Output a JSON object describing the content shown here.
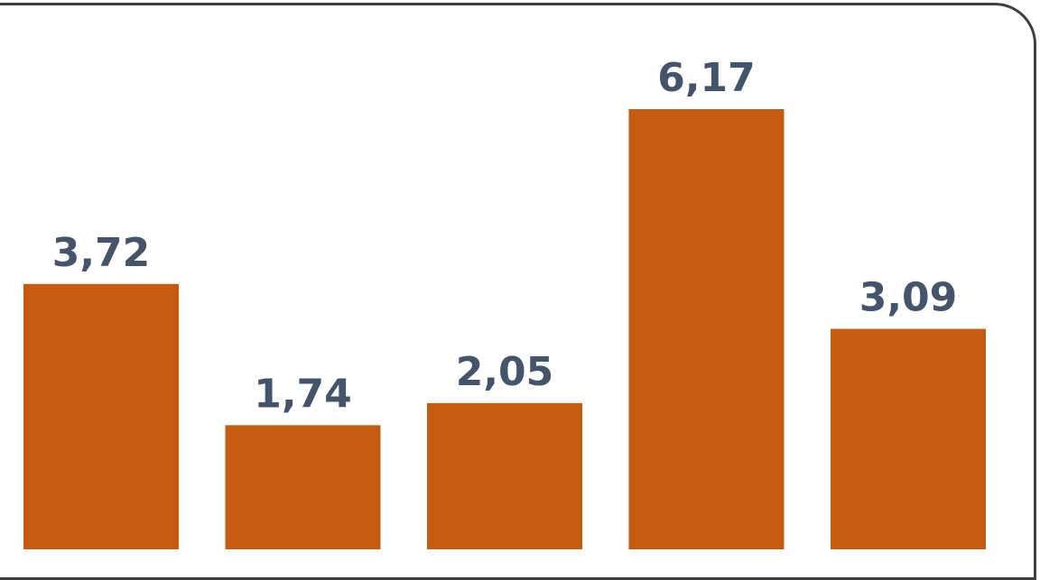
{
  "chart_data": {
    "type": "bar",
    "categories": [
      "",
      "",
      "",
      "",
      ""
    ],
    "values": [
      3.72,
      1.74,
      2.05,
      6.17,
      3.09
    ],
    "data_labels": [
      "3,72",
      "1,74",
      "2,05",
      "6,17",
      "3,09"
    ],
    "title": "",
    "xlabel": "",
    "ylabel": "",
    "ylim": [
      0,
      7.7
    ],
    "grid": false,
    "legend": "none",
    "bar_color": "#c55a11",
    "label_color": "#44546a",
    "frame_color": "#3f3f3f"
  }
}
